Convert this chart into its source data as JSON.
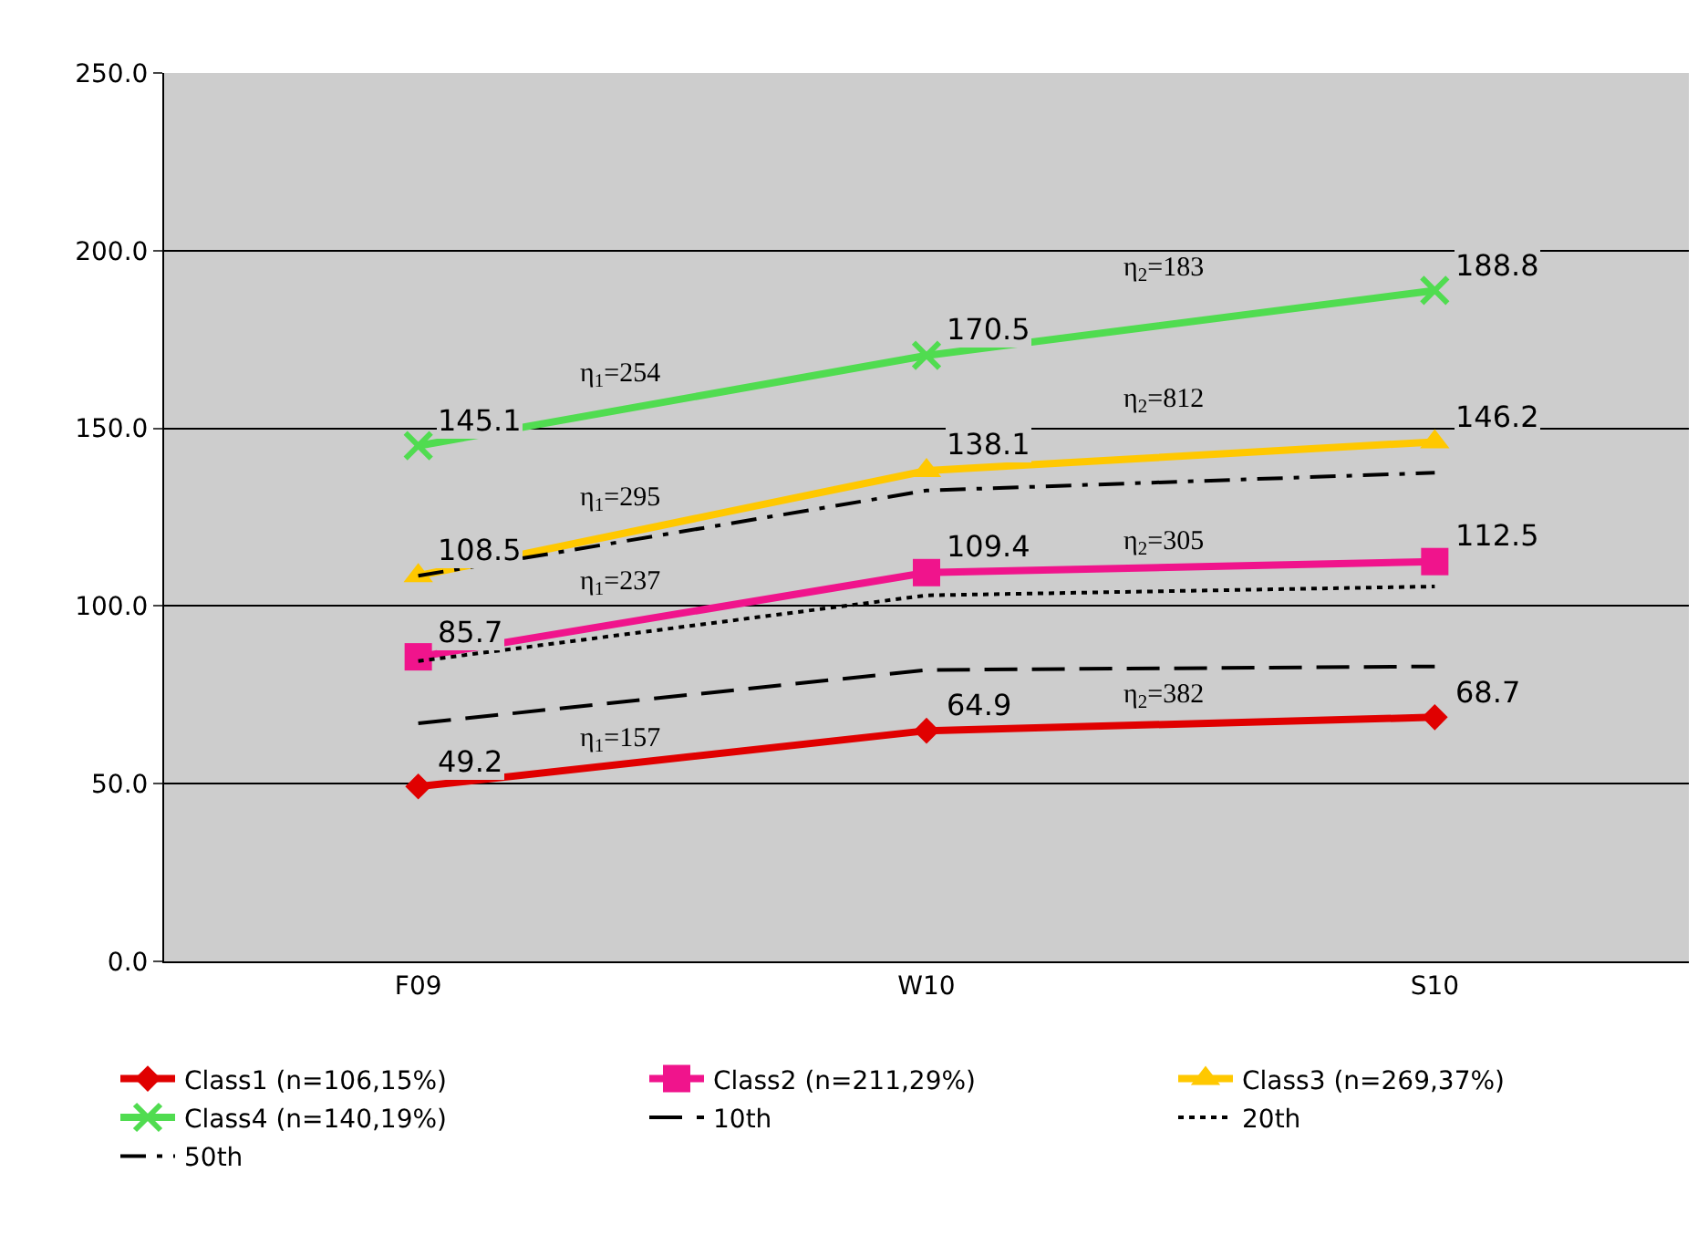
{
  "chart_data": {
    "type": "line",
    "categories": [
      "F09",
      "W10",
      "S10"
    ],
    "ylim": [
      0,
      250
    ],
    "yticks": [
      {
        "value": 0,
        "label": "0.0"
      },
      {
        "value": 50,
        "label": "50.0"
      },
      {
        "value": 100,
        "label": "100.0"
      },
      {
        "value": 150,
        "label": "150.0"
      },
      {
        "value": 200,
        "label": "200.0"
      },
      {
        "value": 250,
        "label": "250.0"
      }
    ],
    "grid": "y",
    "legend": "bottom",
    "series": [
      {
        "name": "Class1 (n=106,15%)",
        "color": "#e00000",
        "values": [
          49.2,
          64.9,
          68.7
        ],
        "marker": "diamond",
        "value_labels": [
          "49.2",
          "64.9",
          "68.7"
        ]
      },
      {
        "name": "Class2 (n=211,29%)",
        "color": "#f0148c",
        "values": [
          85.7,
          109.4,
          112.5
        ],
        "marker": "square",
        "value_labels": [
          "85.7",
          "109.4",
          "112.5"
        ]
      },
      {
        "name": "Class3 (n=269,37%)",
        "color": "#ffc800",
        "values": [
          108.5,
          138.1,
          146.2
        ],
        "marker": "triangle",
        "value_labels": [
          "108.5",
          "138.1",
          "146.2"
        ]
      },
      {
        "name": "Class4 (n=140,19%)",
        "color": "#50dc50",
        "values": [
          145.1,
          170.5,
          188.8
        ],
        "marker": "cross",
        "value_labels": [
          "145.1",
          "170.5",
          "188.8"
        ]
      },
      {
        "name": "10th",
        "color": "#000000",
        "values": [
          67,
          82,
          83
        ],
        "marker": "none",
        "line_style": "dashed"
      },
      {
        "name": "20th",
        "color": "#000000",
        "values": [
          84.5,
          103,
          105.5
        ],
        "marker": "none",
        "line_style": "dotted"
      },
      {
        "name": "50th",
        "color": "#000000",
        "values": [
          108.5,
          132.5,
          137.5
        ],
        "marker": "none",
        "line_style": "dashdot"
      }
    ],
    "annotations": [
      "η$_{1}$=254",
      "η$_{1}$=295",
      "η$_{1}$=237",
      "η$_{1}$=157",
      "η$_{2}$=183",
      "η$_{2}$=812",
      "η$_{2}$=305",
      "η$_{2}$=382"
    ]
  }
}
